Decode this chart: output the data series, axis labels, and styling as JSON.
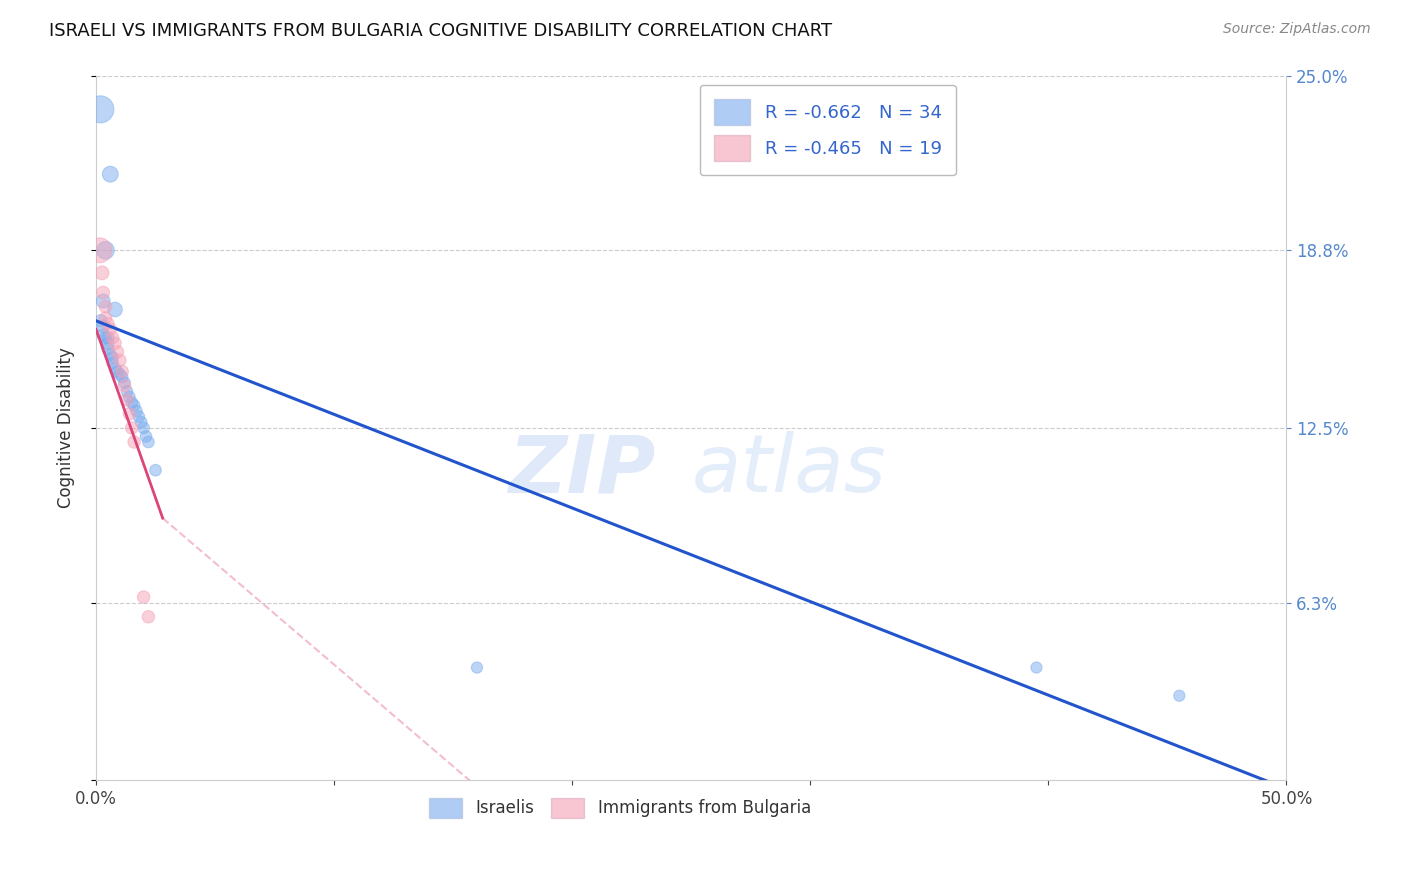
{
  "title": "ISRAELI VS IMMIGRANTS FROM BULGARIA COGNITIVE DISABILITY CORRELATION CHART",
  "source": "Source: ZipAtlas.com",
  "ylabel": "Cognitive Disability",
  "xlim": [
    0.0,
    0.5
  ],
  "ylim": [
    0.0,
    0.25
  ],
  "xticks": [
    0.0,
    0.1,
    0.2,
    0.3,
    0.4,
    0.5
  ],
  "xticklabels": [
    "0.0%",
    "",
    "",
    "",
    "",
    "50.0%"
  ],
  "yticks_right": [
    0.063,
    0.125,
    0.188,
    0.25
  ],
  "yticklabels_right": [
    "6.3%",
    "12.5%",
    "18.8%",
    "25.0%"
  ],
  "israeli_color": "#7aacee",
  "bulgaria_color": "#f4a0b5",
  "israeli_R": -0.662,
  "israeli_N": 34,
  "bulgaria_R": -0.465,
  "bulgaria_N": 19,
  "isr_line_color": "#2255cc",
  "bul_line_color": "#dd4477",
  "isr_line": [
    [
      0.0,
      0.163
    ],
    [
      0.5,
      -0.003
    ]
  ],
  "bul_line_solid": [
    [
      0.0,
      0.16
    ],
    [
      0.028,
      0.093
    ]
  ],
  "bul_line_dash": [
    [
      0.028,
      0.093
    ],
    [
      0.24,
      -0.06
    ]
  ],
  "israeli_points": [
    [
      0.0018,
      0.238
    ],
    [
      0.004,
      0.188
    ],
    [
      0.006,
      0.215
    ],
    [
      0.008,
      0.167
    ],
    [
      0.003,
      0.17
    ],
    [
      0.002,
      0.163
    ],
    [
      0.003,
      0.161
    ],
    [
      0.003,
      0.158
    ],
    [
      0.004,
      0.157
    ],
    [
      0.005,
      0.157
    ],
    [
      0.005,
      0.155
    ],
    [
      0.005,
      0.153
    ],
    [
      0.006,
      0.151
    ],
    [
      0.007,
      0.15
    ],
    [
      0.007,
      0.148
    ],
    [
      0.008,
      0.146
    ],
    [
      0.009,
      0.145
    ],
    [
      0.01,
      0.144
    ],
    [
      0.011,
      0.143
    ],
    [
      0.012,
      0.141
    ],
    [
      0.013,
      0.138
    ],
    [
      0.014,
      0.136
    ],
    [
      0.015,
      0.134
    ],
    [
      0.016,
      0.133
    ],
    [
      0.017,
      0.131
    ],
    [
      0.018,
      0.129
    ],
    [
      0.019,
      0.127
    ],
    [
      0.02,
      0.125
    ],
    [
      0.021,
      0.122
    ],
    [
      0.022,
      0.12
    ],
    [
      0.025,
      0.11
    ],
    [
      0.16,
      0.04
    ],
    [
      0.395,
      0.04
    ],
    [
      0.455,
      0.03
    ]
  ],
  "israeli_sizes": [
    380,
    160,
    130,
    110,
    100,
    80,
    80,
    80,
    75,
    75,
    75,
    75,
    70,
    70,
    70,
    70,
    70,
    70,
    70,
    70,
    70,
    70,
    70,
    70,
    70,
    70,
    70,
    70,
    70,
    70,
    70,
    65,
    65,
    65
  ],
  "bulgaria_points": [
    [
      0.0015,
      0.188
    ],
    [
      0.0025,
      0.18
    ],
    [
      0.003,
      0.173
    ],
    [
      0.004,
      0.168
    ],
    [
      0.004,
      0.164
    ],
    [
      0.005,
      0.162
    ],
    [
      0.006,
      0.16
    ],
    [
      0.007,
      0.157
    ],
    [
      0.008,
      0.155
    ],
    [
      0.009,
      0.152
    ],
    [
      0.01,
      0.149
    ],
    [
      0.011,
      0.145
    ],
    [
      0.012,
      0.14
    ],
    [
      0.013,
      0.135
    ],
    [
      0.014,
      0.13
    ],
    [
      0.015,
      0.125
    ],
    [
      0.016,
      0.12
    ],
    [
      0.02,
      0.065
    ],
    [
      0.022,
      0.058
    ]
  ],
  "bulgaria_sizes": [
    320,
    100,
    85,
    80,
    80,
    80,
    80,
    80,
    80,
    80,
    80,
    80,
    80,
    80,
    80,
    80,
    80,
    80,
    80
  ],
  "watermark_zip": "ZIP",
  "watermark_atlas": "atlas",
  "background_color": "#ffffff",
  "grid_color": "#cccccc"
}
